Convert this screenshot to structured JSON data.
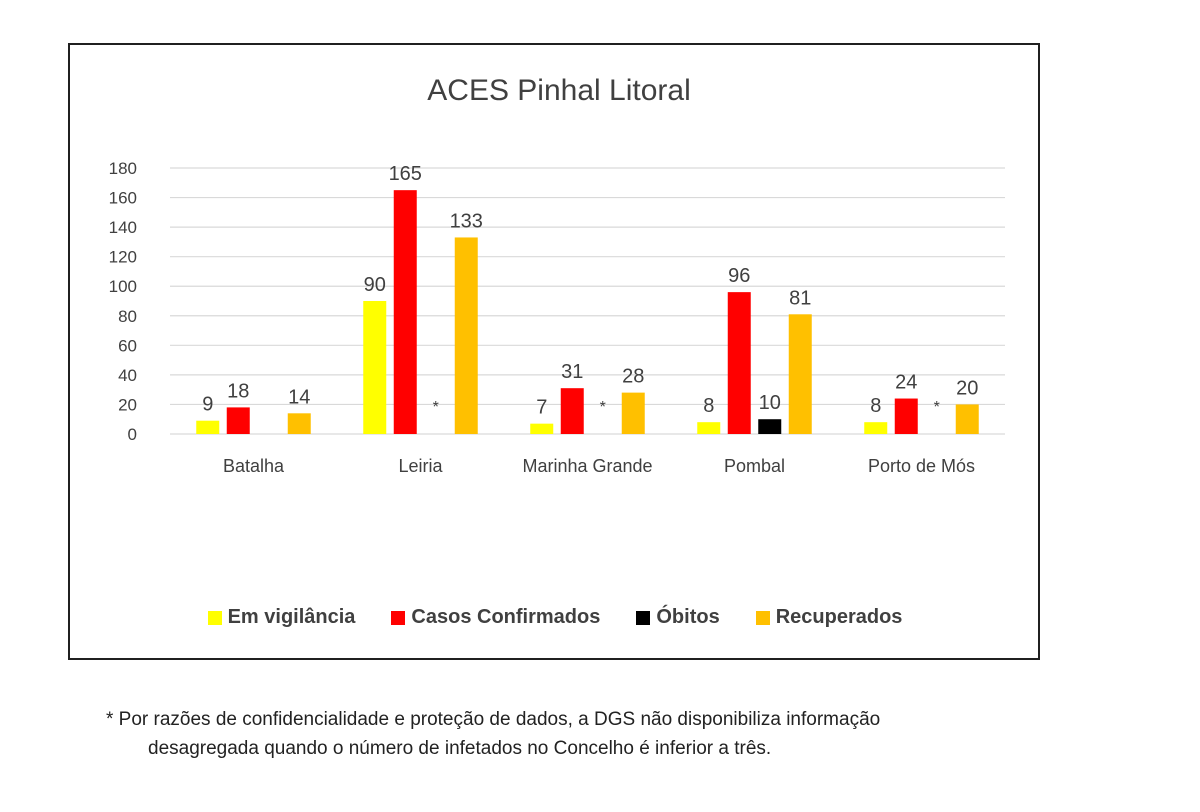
{
  "chart_data": {
    "type": "bar",
    "title": "ACES Pinhal Litoral",
    "categories": [
      "Batalha",
      "Leiria",
      "Marinha Grande",
      "Pombal",
      "Porto de Mós"
    ],
    "ylim": [
      0,
      180
    ],
    "yticks": [
      0,
      20,
      40,
      60,
      80,
      100,
      120,
      140,
      160,
      180
    ],
    "grid": true,
    "legend_position": "bottom",
    "series": [
      {
        "name": "Em vigilância",
        "color": "#FFFF00",
        "values": [
          9,
          90,
          7,
          8,
          8
        ],
        "labels": [
          "9",
          "90",
          "7",
          "8",
          "8"
        ]
      },
      {
        "name": "Casos Confirmados",
        "color": "#FF0000",
        "values": [
          18,
          165,
          31,
          96,
          24
        ],
        "labels": [
          "18",
          "165",
          "31",
          "96",
          "24"
        ]
      },
      {
        "name": "Óbitos",
        "color": "#000000",
        "values": [
          0,
          0,
          0,
          10,
          0
        ],
        "labels": [
          "",
          "*",
          "*",
          "10",
          "*"
        ]
      },
      {
        "name": "Recuperados",
        "color": "#FFC000",
        "values": [
          14,
          133,
          28,
          81,
          20
        ],
        "labels": [
          "14",
          "133",
          "28",
          "81",
          "20"
        ]
      }
    ]
  },
  "footnote": {
    "line1": "* Por razões de confidencialidade e proteção de dados, a DGS não disponibiliza informação",
    "line2": "desagregada quando o número de infetados no Concelho é inferior a três."
  }
}
